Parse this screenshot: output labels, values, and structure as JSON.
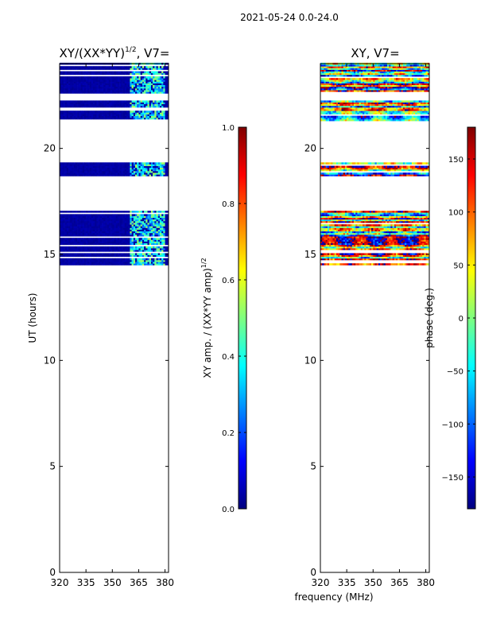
{
  "figure": {
    "suptitle": "2021-05-24 0.0-24.0",
    "shared_xlabel": "frequency (MHz)"
  },
  "colors": {
    "jet": [
      "#00007f",
      "#0000ff",
      "#007fff",
      "#00ffff",
      "#7fff7f",
      "#ffff00",
      "#ff7f00",
      "#ff0000",
      "#7f0000"
    ],
    "axis": "#000000",
    "background": "#ffffff"
  },
  "chart_data": [
    {
      "type": "heatmap",
      "name": "amplitude_ratio",
      "title_main": "XY/(XX*YY)",
      "title_sup": "1/2",
      "title_tail": ", V7=",
      "xlabel": "",
      "ylabel": "UT (hours)",
      "xlim": [
        320,
        382
      ],
      "ylim": [
        0,
        24
      ],
      "xticks": [
        320,
        335,
        350,
        365,
        380
      ],
      "xtick_labels": [
        "320",
        "335",
        "350",
        "365",
        "380"
      ],
      "yticks": [
        0,
        5,
        10,
        15,
        20
      ],
      "ytick_labels": [
        "0",
        "5",
        "10",
        "15",
        "20"
      ],
      "data_bands_hours": [
        [
          14.5,
          17.0
        ],
        [
          18.7,
          19.3
        ],
        [
          21.3,
          22.2
        ],
        [
          22.6,
          24.0
        ]
      ],
      "background_value": 0.02,
      "high_value_freq_range_mhz": [
        360,
        380
      ],
      "colorbar": {
        "label": "XY amp. / (XX*YY amp)",
        "label_sup": "1/2",
        "min": 0.0,
        "max": 1.0,
        "ticks": [
          0.0,
          0.2,
          0.4,
          0.6,
          0.8,
          1.0
        ],
        "tick_labels": [
          "0.0",
          "0.2",
          "0.4",
          "0.6",
          "0.8",
          "1.0"
        ]
      }
    },
    {
      "type": "heatmap",
      "name": "phase",
      "title": "XY, V7=",
      "xlabel": "frequency (MHz)",
      "ylabel": "",
      "xlim": [
        320,
        382
      ],
      "ylim": [
        0,
        24
      ],
      "xticks": [
        320,
        335,
        350,
        365,
        380
      ],
      "xtick_labels": [
        "320",
        "335",
        "350",
        "365",
        "380"
      ],
      "yticks": [
        0,
        5,
        10,
        15,
        20
      ],
      "ytick_labels": [
        "0",
        "5",
        "10",
        "15",
        "20"
      ],
      "data_bands_hours": [
        [
          14.5,
          17.0
        ],
        [
          18.7,
          19.3
        ],
        [
          21.3,
          22.2
        ],
        [
          22.6,
          24.0
        ]
      ],
      "colorbar": {
        "label": "phase (deg.)",
        "min": -180,
        "max": 180,
        "ticks": [
          -150,
          -100,
          -50,
          0,
          50,
          100,
          150
        ],
        "tick_labels": [
          "−150",
          "−100",
          "−50",
          "0",
          "50",
          "100",
          "150"
        ]
      }
    }
  ]
}
